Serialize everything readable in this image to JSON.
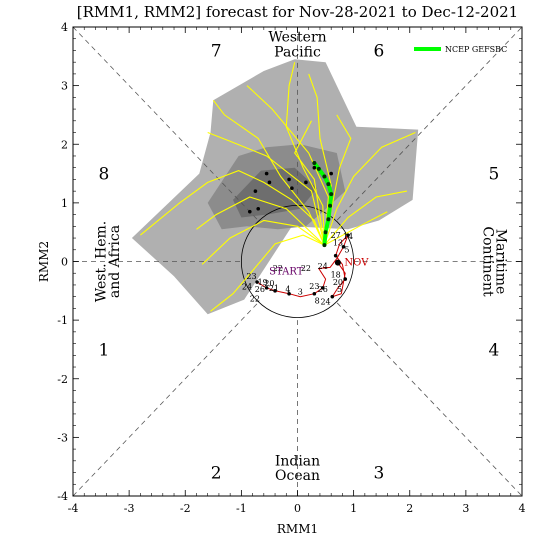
{
  "chart_data": {
    "type": "scatter",
    "title": "[RMM1, RMM2] forecast for Nov-28-2021 to Dec-12-2021",
    "xlabel": "RMM1",
    "ylabel": "RMM2",
    "xlim": [
      -4,
      4
    ],
    "ylim": [
      -4,
      4
    ],
    "xticks": [
      "-4",
      "-3",
      "-2",
      "-1",
      "0",
      "1",
      "2",
      "3",
      "4"
    ],
    "yticks": [
      "-4",
      "-3",
      "-2",
      "-1",
      "0",
      "1",
      "2",
      "3",
      "4"
    ],
    "grid": false,
    "legend": {
      "position": "top-right",
      "label": "NCEP GEFSBC",
      "color": "#00ff00"
    },
    "phases": [
      {
        "label": "1",
        "x": -3.45,
        "y": -1.5
      },
      {
        "label": "2",
        "x": -1.45,
        "y": -3.6
      },
      {
        "label": "3",
        "x": 1.45,
        "y": -3.6
      },
      {
        "label": "4",
        "x": 3.5,
        "y": -1.5
      },
      {
        "label": "5",
        "x": 3.5,
        "y": 1.5
      },
      {
        "label": "6",
        "x": 1.45,
        "y": 3.6
      },
      {
        "label": "7",
        "x": -1.45,
        "y": 3.6
      },
      {
        "label": "8",
        "x": -3.45,
        "y": 1.5
      }
    ],
    "regions": {
      "top": [
        "Western",
        "Pacific"
      ],
      "bottom": [
        "Indian",
        "Ocean"
      ],
      "left": [
        "West. Hem.",
        "and Africa"
      ],
      "right": [
        "Maritime",
        "Continent"
      ]
    },
    "start_label": "START",
    "month_labels": [
      {
        "text": "NOV",
        "x": 1.05,
        "y": -0.02
      }
    ],
    "observed_labels": [
      {
        "t": "22",
        "x": -0.35,
        "y": -0.16
      },
      {
        "t": "23",
        "x": -0.82,
        "y": -0.3
      },
      {
        "t": "19",
        "x": -0.62,
        "y": -0.4
      },
      {
        "t": "20",
        "x": -0.5,
        "y": -0.42
      },
      {
        "t": "21",
        "x": -0.42,
        "y": -0.5
      },
      {
        "t": "26",
        "x": -0.67,
        "y": -0.52
      },
      {
        "t": "24",
        "x": -0.9,
        "y": -0.48
      },
      {
        "t": "4",
        "x": -0.17,
        "y": -0.52
      },
      {
        "t": "3",
        "x": 0.05,
        "y": -0.56
      },
      {
        "t": "22",
        "x": -0.76,
        "y": -0.68
      },
      {
        "t": "23",
        "x": 0.3,
        "y": -0.47
      },
      {
        "t": "26",
        "x": 0.45,
        "y": -0.52
      },
      {
        "t": "8",
        "x": 0.35,
        "y": -0.72
      },
      {
        "t": "24",
        "x": 0.5,
        "y": -0.73
      },
      {
        "t": "22",
        "x": 0.15,
        "y": -0.16
      },
      {
        "t": "24",
        "x": 0.45,
        "y": -0.13
      },
      {
        "t": "27",
        "x": 0.68,
        "y": 0.4
      },
      {
        "t": "13",
        "x": 0.72,
        "y": 0.27
      },
      {
        "t": "14",
        "x": 0.9,
        "y": 0.38
      },
      {
        "t": "5",
        "x": 0.88,
        "y": 0.15
      },
      {
        "t": "18",
        "x": 0.68,
        "y": -0.27
      },
      {
        "t": "20",
        "x": 0.72,
        "y": -0.4
      },
      {
        "t": "5",
        "x": 0.75,
        "y": -0.52
      }
    ],
    "observed_path": [
      {
        "x": -0.72,
        "y": -0.35
      },
      {
        "x": -0.55,
        "y": -0.45
      },
      {
        "x": -0.4,
        "y": -0.5
      },
      {
        "x": -0.15,
        "y": -0.55
      },
      {
        "x": 0.05,
        "y": -0.6
      },
      {
        "x": 0.3,
        "y": -0.55
      },
      {
        "x": 0.45,
        "y": -0.45
      },
      {
        "x": 0.5,
        "y": -0.3
      },
      {
        "x": 0.38,
        "y": -0.12
      },
      {
        "x": 0.58,
        "y": -0.1
      },
      {
        "x": 0.7,
        "y": 0.05
      },
      {
        "x": 0.82,
        "y": 0.25
      },
      {
        "x": 0.9,
        "y": 0.45
      },
      {
        "x": 0.75,
        "y": 0.3
      },
      {
        "x": 0.68,
        "y": 0.1
      },
      {
        "x": 0.8,
        "y": -0.05
      },
      {
        "x": 0.85,
        "y": -0.3
      },
      {
        "x": 0.72,
        "y": -0.45
      },
      {
        "x": 0.62,
        "y": -0.6
      },
      {
        "x": 0.78,
        "y": -0.55
      },
      {
        "x": 0.85,
        "y": -0.2
      },
      {
        "x": 0.72,
        "y": -0.02
      }
    ],
    "ensemble_mean": [
      {
        "x": 0.48,
        "y": 0.28
      },
      {
        "x": 0.5,
        "y": 0.5
      },
      {
        "x": 0.55,
        "y": 0.72
      },
      {
        "x": 0.58,
        "y": 0.95
      },
      {
        "x": 0.6,
        "y": 1.15
      },
      {
        "x": 0.55,
        "y": 1.32
      },
      {
        "x": 0.48,
        "y": 1.45
      },
      {
        "x": 0.38,
        "y": 1.58
      },
      {
        "x": 0.3,
        "y": 1.68
      }
    ],
    "gray_outer": [
      {
        "x": -2.95,
        "y": 0.4
      },
      {
        "x": -1.75,
        "y": 1.5
      },
      {
        "x": -1.55,
        "y": 2.2
      },
      {
        "x": -1.5,
        "y": 2.75
      },
      {
        "x": -0.6,
        "y": 3.25
      },
      {
        "x": -0.05,
        "y": 3.45
      },
      {
        "x": 0.5,
        "y": 3.4
      },
      {
        "x": 1.05,
        "y": 2.3
      },
      {
        "x": 2.15,
        "y": 2.25
      },
      {
        "x": 2.05,
        "y": 1.05
      },
      {
        "x": 1.45,
        "y": 0.7
      },
      {
        "x": 0.9,
        "y": 0.55
      },
      {
        "x": -0.1,
        "y": 0.6
      },
      {
        "x": -0.95,
        "y": -0.65
      },
      {
        "x": -1.6,
        "y": -0.9
      },
      {
        "x": -2.2,
        "y": -0.25
      }
    ],
    "gray_inner": [
      {
        "x": -1.6,
        "y": 1.0
      },
      {
        "x": -1.05,
        "y": 1.8
      },
      {
        "x": -0.55,
        "y": 1.95
      },
      {
        "x": 0.05,
        "y": 2.0
      },
      {
        "x": 0.7,
        "y": 1.85
      },
      {
        "x": 0.85,
        "y": 1.2
      },
      {
        "x": 0.45,
        "y": 0.85
      },
      {
        "x": 0.15,
        "y": 0.6
      },
      {
        "x": -0.35,
        "y": 0.55
      },
      {
        "x": -0.9,
        "y": 0.6
      },
      {
        "x": -1.35,
        "y": 0.55
      }
    ],
    "gray_core": [
      {
        "x": -1.15,
        "y": 1.05
      },
      {
        "x": -0.65,
        "y": 1.55
      },
      {
        "x": -0.05,
        "y": 1.6
      },
      {
        "x": 0.35,
        "y": 1.25
      },
      {
        "x": 0.05,
        "y": 0.9
      },
      {
        "x": -0.55,
        "y": 0.8
      },
      {
        "x": -1.0,
        "y": 0.75
      }
    ],
    "ensemble_members": [
      [
        {
          "x": 0.48,
          "y": 0.28
        },
        {
          "x": 0.3,
          "y": 0.7
        },
        {
          "x": -0.1,
          "y": 1.05
        },
        {
          "x": -0.6,
          "y": 1.35
        },
        {
          "x": -1.05,
          "y": 1.55
        },
        {
          "x": -1.6,
          "y": 1.35
        },
        {
          "x": -2.1,
          "y": 1.0
        },
        {
          "x": -2.8,
          "y": 0.45
        }
      ],
      [
        {
          "x": 0.48,
          "y": 0.28
        },
        {
          "x": 0.2,
          "y": 0.85
        },
        {
          "x": -0.3,
          "y": 1.45
        },
        {
          "x": -0.7,
          "y": 2.1
        },
        {
          "x": -1.3,
          "y": 2.5
        },
        {
          "x": -1.5,
          "y": 2.75
        }
      ],
      [
        {
          "x": 0.48,
          "y": 0.28
        },
        {
          "x": 0.45,
          "y": 0.95
        },
        {
          "x": 0.1,
          "y": 1.6
        },
        {
          "x": -0.2,
          "y": 2.3
        },
        {
          "x": -0.15,
          "y": 3.0
        },
        {
          "x": -0.05,
          "y": 3.4
        }
      ],
      [
        {
          "x": 0.48,
          "y": 0.28
        },
        {
          "x": 0.7,
          "y": 0.9
        },
        {
          "x": 1.0,
          "y": 1.45
        },
        {
          "x": 1.5,
          "y": 1.95
        },
        {
          "x": 2.1,
          "y": 2.2
        }
      ],
      [
        {
          "x": 0.48,
          "y": 0.28
        },
        {
          "x": 0.9,
          "y": 0.75
        },
        {
          "x": 1.4,
          "y": 1.1
        },
        {
          "x": 1.95,
          "y": 1.2
        }
      ],
      [
        {
          "x": 0.48,
          "y": 0.28
        },
        {
          "x": 0.1,
          "y": 0.45
        },
        {
          "x": -0.4,
          "y": 0.3
        },
        {
          "x": -0.75,
          "y": -0.1
        },
        {
          "x": -1.15,
          "y": -0.55
        },
        {
          "x": -1.55,
          "y": -0.85
        }
      ],
      [
        {
          "x": 0.48,
          "y": 0.28
        },
        {
          "x": 0.0,
          "y": 0.6
        },
        {
          "x": -0.6,
          "y": 0.7
        },
        {
          "x": -1.2,
          "y": 0.4
        },
        {
          "x": -1.7,
          "y": -0.05
        }
      ],
      [
        {
          "x": 0.48,
          "y": 0.28
        },
        {
          "x": 0.6,
          "y": 1.3
        },
        {
          "x": 0.4,
          "y": 2.1
        },
        {
          "x": 0.35,
          "y": 2.8
        },
        {
          "x": 0.2,
          "y": 3.2
        }
      ],
      [
        {
          "x": 0.48,
          "y": 0.28
        },
        {
          "x": 0.25,
          "y": 1.2
        },
        {
          "x": -0.55,
          "y": 1.8
        },
        {
          "x": -1.2,
          "y": 2.05
        },
        {
          "x": -1.6,
          "y": 2.2
        }
      ],
      [
        {
          "x": 0.48,
          "y": 0.28
        },
        {
          "x": 0.75,
          "y": 1.6
        },
        {
          "x": 0.95,
          "y": 2.1
        },
        {
          "x": 0.7,
          "y": 2.5
        }
      ],
      [
        {
          "x": 0.48,
          "y": 0.28
        },
        {
          "x": -0.2,
          "y": 0.9
        },
        {
          "x": -0.85,
          "y": 1.1
        },
        {
          "x": -1.45,
          "y": 0.8
        },
        {
          "x": -1.8,
          "y": 0.55
        }
      ],
      [
        {
          "x": 0.48,
          "y": 0.28
        },
        {
          "x": 0.55,
          "y": 1.1
        },
        {
          "x": 0.2,
          "y": 1.85
        },
        {
          "x": -0.45,
          "y": 2.6
        },
        {
          "x": -0.9,
          "y": 3.0
        }
      ],
      [
        {
          "x": 0.48,
          "y": 0.28
        },
        {
          "x": 1.1,
          "y": 0.6
        },
        {
          "x": 1.6,
          "y": 0.85
        }
      ],
      [
        {
          "x": 0.48,
          "y": 0.28
        },
        {
          "x": 0.3,
          "y": 1.4
        },
        {
          "x": -0.05,
          "y": 1.85
        },
        {
          "x": 0.25,
          "y": 2.4
        }
      ]
    ],
    "ensemble_dots": [
      {
        "x": -0.55,
        "y": 1.5
      },
      {
        "x": -0.75,
        "y": 1.2
      },
      {
        "x": -0.7,
        "y": 0.9
      },
      {
        "x": -0.5,
        "y": 1.35
      },
      {
        "x": -0.15,
        "y": 1.4
      },
      {
        "x": -0.1,
        "y": 1.25
      },
      {
        "x": 0.15,
        "y": 1.35
      },
      {
        "x": 0.3,
        "y": 1.6
      },
      {
        "x": -0.85,
        "y": 0.85
      },
      {
        "x": 0.6,
        "y": 1.5
      }
    ],
    "obs_dots": [
      {
        "x": 0.72,
        "y": -0.02
      },
      {
        "x": -0.72,
        "y": -0.35
      },
      {
        "x": -0.55,
        "y": -0.45
      },
      {
        "x": -0.4,
        "y": -0.5
      },
      {
        "x": -0.15,
        "y": -0.55
      },
      {
        "x": 0.3,
        "y": -0.55
      },
      {
        "x": 0.45,
        "y": -0.45
      },
      {
        "x": 0.82,
        "y": 0.25
      },
      {
        "x": 0.9,
        "y": 0.45
      },
      {
        "x": 0.85,
        "y": -0.3
      },
      {
        "x": 0.62,
        "y": -0.6
      },
      {
        "x": 0.68,
        "y": 0.1
      }
    ],
    "colors": {
      "members": "#ffff00",
      "mean": "#00ff00",
      "shade_outer": "#b0b0b0",
      "shade_inner": "#8c8c8c",
      "shade_core": "#6e6e6e",
      "observed": "#cc0000",
      "start": "#660066",
      "month": "#cc0000"
    }
  }
}
